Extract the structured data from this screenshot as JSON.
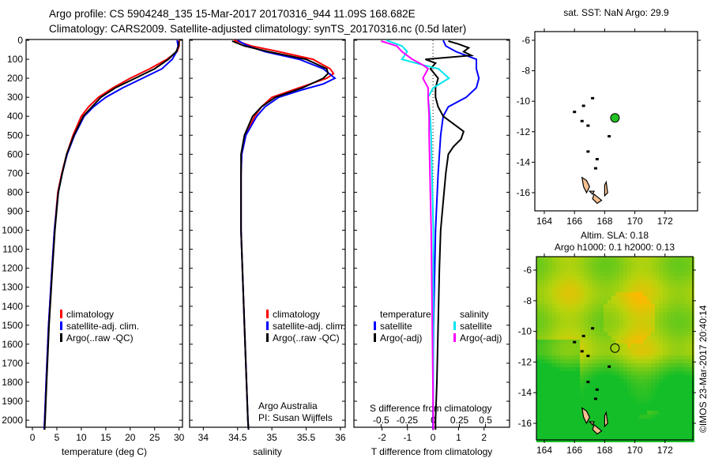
{
  "header": {
    "line1": "Argo profile: CS 5904248_135 15-Mar-2017 20170316_944 11.09S 168.682E",
    "line2": "Climatology: CARS2009. Satellite-adjusted climatology: synTS_20170316.nc (0.5d later)"
  },
  "side_text": "©IMOS 23-Mar-2017 20:40:14",
  "chart_data": [
    {
      "id": "temperature",
      "type": "line",
      "xlabel": "temperature (deg C)",
      "xlim": [
        -1.3,
        30.7
      ],
      "ylim": [
        0,
        2037
      ],
      "xticks": [
        0,
        5,
        10,
        15,
        20,
        25,
        30
      ],
      "yticks": [
        0,
        100,
        200,
        300,
        400,
        500,
        600,
        700,
        800,
        900,
        1000,
        1100,
        1200,
        1300,
        1400,
        1500,
        1600,
        1700,
        1800,
        1900,
        2000
      ],
      "legend": [
        "climatology",
        "satellite-adj. clim.",
        "Argo(..raw -QC)"
      ],
      "series": [
        {
          "name": "climatology",
          "color": "#ff0000",
          "depth": [
            0,
            30,
            60,
            100,
            150,
            200,
            250,
            300,
            350,
            400,
            500,
            600,
            700,
            800,
            1000,
            1200,
            1500,
            1800,
            2000,
            2050
          ],
          "values": [
            30,
            30,
            29.6,
            27.5,
            24,
            20,
            16.5,
            13.5,
            11.5,
            10,
            8.3,
            7,
            6,
            5.2,
            4.5,
            4,
            3.3,
            2.8,
            2.5,
            2.4
          ]
        },
        {
          "name": "satellite-adj. clim.",
          "color": "#0000ff",
          "depth": [
            0,
            30,
            60,
            100,
            150,
            200,
            250,
            300,
            350,
            400,
            500,
            600,
            700,
            800,
            1000,
            1200,
            1500,
            1800,
            2000,
            2050
          ],
          "values": [
            29.6,
            29.8,
            29.5,
            28.6,
            26.5,
            22.5,
            18.5,
            15,
            12.5,
            10.6,
            8.6,
            7.1,
            6.1,
            5.3,
            4.5,
            4,
            3.3,
            2.8,
            2.5,
            2.4
          ]
        },
        {
          "name": "Argo(..raw -QC)",
          "color": "#000000",
          "depth": [
            4,
            30,
            60,
            100,
            150,
            200,
            250,
            300,
            350,
            400,
            500,
            600,
            700,
            800,
            1000,
            1200,
            1500,
            1800,
            2000,
            2050
          ],
          "values": [
            30,
            29.9,
            29.4,
            27.8,
            25,
            21,
            17,
            14,
            12.2,
            10.4,
            8.5,
            7,
            6.1,
            5.3,
            4.6,
            4.1,
            3.4,
            2.9,
            2.6,
            2.5
          ]
        }
      ]
    },
    {
      "id": "salinity",
      "type": "line",
      "xlabel": "salinity",
      "xlim": [
        33.8,
        36.07
      ],
      "ylim": [
        0,
        2037
      ],
      "xticks": [
        34,
        34.5,
        35,
        35.5,
        36
      ],
      "legend": [
        "climatology",
        "satellite-adj. clim.",
        "Argo(..raw -QC)"
      ],
      "annotation": [
        "Argo Australia",
        "PI: Susan Wijffels"
      ],
      "series": [
        {
          "name": "climatology",
          "color": "#ff0000",
          "depth": [
            0,
            30,
            60,
            100,
            150,
            175,
            200,
            250,
            300,
            350,
            400,
            500,
            600,
            700,
            1000,
            1500,
            2000,
            2050
          ],
          "values": [
            34.45,
            34.7,
            35.1,
            35.6,
            35.85,
            35.9,
            35.8,
            35.4,
            35.0,
            34.85,
            34.75,
            34.62,
            34.56,
            34.55,
            34.55,
            34.6,
            34.65,
            34.66
          ]
        },
        {
          "name": "satellite-adj. clim.",
          "color": "#0000ff",
          "depth": [
            0,
            30,
            60,
            100,
            150,
            200,
            230,
            260,
            300,
            350,
            400,
            500,
            600,
            700,
            1000,
            1500,
            2000,
            2050
          ],
          "values": [
            34.5,
            34.65,
            34.9,
            35.4,
            35.75,
            35.92,
            35.75,
            35.45,
            35.1,
            34.9,
            34.78,
            34.62,
            34.56,
            34.55,
            34.55,
            34.6,
            34.65,
            34.66
          ]
        },
        {
          "name": "Argo(..raw -QC)",
          "color": "#000000",
          "depth": [
            4,
            30,
            60,
            100,
            150,
            175,
            200,
            250,
            300,
            350,
            400,
            500,
            600,
            700,
            1000,
            1500,
            2000,
            2050
          ],
          "values": [
            34.42,
            34.6,
            34.95,
            35.5,
            35.8,
            35.82,
            35.75,
            35.45,
            35.05,
            34.85,
            34.72,
            34.6,
            34.55,
            34.55,
            34.55,
            34.6,
            34.65,
            34.66
          ]
        }
      ]
    },
    {
      "id": "differences",
      "type": "line",
      "xlabel": "T difference from climatology",
      "xlim": [
        -3.1,
        3.0
      ],
      "xticks": [
        -2,
        -1,
        0,
        1,
        2
      ],
      "s_label": "S difference from climatology",
      "s_xlim": [
        -0.76,
        0.73
      ],
      "s_xticks": [
        "-0.5",
        "-0.25",
        "0",
        "0.25",
        "0.5"
      ],
      "s_tick_values": [
        -0.5,
        -0.25,
        0,
        0.25,
        0.5
      ],
      "ylim": [
        0,
        2037
      ],
      "legend": {
        "temperature_title": "temperature",
        "salinity_title": "salinity",
        "items": [
          "satellite",
          "Argo(-adj)",
          "satellite",
          "Argo(-adj)"
        ]
      },
      "series": [
        {
          "name": "temperature satellite",
          "axis": "T",
          "color": "#0000ff",
          "depth": [
            0,
            30,
            60,
            100,
            150,
            200,
            250,
            300,
            350,
            400,
            500,
            700,
            1000,
            1500,
            2000,
            2050
          ],
          "values": [
            0.4,
            0.5,
            0.9,
            1.7,
            1.7,
            1.8,
            1.7,
            1.3,
            0.6,
            0.4,
            0.3,
            0.2,
            0.1,
            0.02,
            0,
            0
          ]
        },
        {
          "name": "temperature Argo(-adj)",
          "axis": "T",
          "color": "#000000",
          "depth": [
            4,
            20,
            40,
            60,
            80,
            100,
            120,
            150,
            200,
            250,
            300,
            350,
            400,
            450,
            480,
            520,
            560,
            600,
            700,
            850,
            1000,
            1200,
            1500,
            1800,
            2000,
            2050
          ],
          "values": [
            0.6,
            1.0,
            1.4,
            1.2,
            1.5,
            -0.3,
            0.1,
            -0.1,
            0.2,
            0.1,
            0.1,
            0.2,
            0.4,
            0.9,
            1.2,
            1.1,
            0.8,
            0.6,
            0.5,
            0.4,
            0.3,
            0.25,
            0.2,
            0.15,
            0.1,
            0.1
          ]
        },
        {
          "name": "salinity satellite",
          "axis": "S",
          "color": "#00e5ee",
          "depth": [
            0,
            30,
            60,
            100,
            130,
            150,
            200,
            250,
            300,
            400,
            500,
            1000,
            1500,
            2000,
            2050
          ],
          "values": [
            -0.45,
            -0.3,
            -0.25,
            -0.3,
            -0.1,
            0.05,
            0.15,
            0.0,
            -0.05,
            -0.03,
            -0.02,
            0,
            0,
            0,
            0
          ]
        },
        {
          "name": "salinity Argo(-adj)",
          "axis": "S",
          "color": "#ff00ff",
          "depth": [
            4,
            30,
            60,
            100,
            130,
            150,
            200,
            250,
            300,
            400,
            500,
            1000,
            1500,
            2000,
            2050
          ],
          "values": [
            -0.5,
            -0.35,
            -0.3,
            -0.2,
            -0.1,
            -0.05,
            -0.1,
            -0.05,
            -0.05,
            -0.04,
            -0.04,
            -0.02,
            -0.01,
            0,
            0
          ]
        }
      ]
    },
    {
      "id": "sst-map",
      "type": "map",
      "title": [
        "sat. SST: NaN Argo: 29.9"
      ],
      "xticks": [
        164,
        166,
        168,
        170,
        172
      ],
      "yticks": [
        -6,
        -8,
        -10,
        -12,
        -14,
        -16
      ],
      "marker": {
        "lon": 168.682,
        "lat": -11.09,
        "color": "#22c022"
      }
    },
    {
      "id": "sla-map",
      "type": "heatmap",
      "title": [
        "Altim. SLA: 0.18",
        "Argo h1000: 0.1 h2000: 0.13"
      ],
      "xticks": [
        164,
        166,
        168,
        170,
        172
      ],
      "yticks": [
        -6,
        -8,
        -10,
        -12,
        -14,
        -16
      ],
      "marker": {
        "lon": 168.682,
        "lat": -11.09,
        "color": "none"
      }
    }
  ]
}
